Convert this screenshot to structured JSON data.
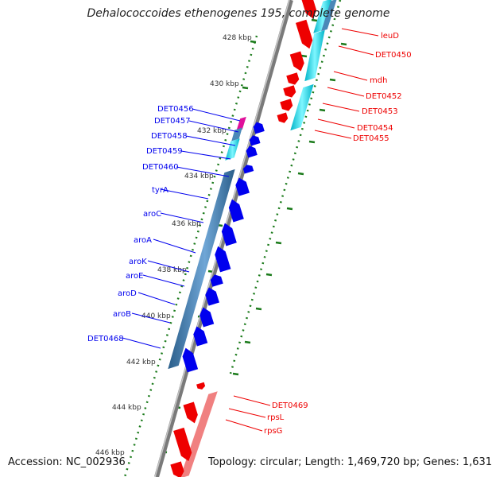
{
  "title": "Dehalococcoides ethenogenes 195, complete genome",
  "footer": {
    "accession": "Accession: NC_002936",
    "summary": "Topology: circular; Length: 1,469,720 bp; Genes: 1,631"
  },
  "colors": {
    "forward_gene": "#0000ee",
    "reverse_gene": "#ee0000",
    "reverse_gene_light": "#f08080",
    "cds_blue": "#4682b4",
    "cds_cyan": "#00e0e0",
    "cds_magenta": "#e0109a",
    "backbone": "#808080",
    "ticks": "#1a7a1a"
  },
  "ticks": [
    {
      "label": "428 kbp"
    },
    {
      "label": "430 kbp"
    },
    {
      "label": "432 kbp"
    },
    {
      "label": "434 kbp"
    },
    {
      "label": "436 kbp"
    },
    {
      "label": "438 kbp"
    },
    {
      "label": "440 kbp"
    },
    {
      "label": "442 kbp"
    },
    {
      "label": "444 kbp"
    },
    {
      "label": "446 kbp"
    }
  ],
  "genes_forward": [
    {
      "name": "DET0456"
    },
    {
      "name": "DET0457"
    },
    {
      "name": "DET0458"
    },
    {
      "name": "DET0459"
    },
    {
      "name": "DET0460"
    },
    {
      "name": "tyrA"
    },
    {
      "name": "aroC"
    },
    {
      "name": "aroA"
    },
    {
      "name": "aroK"
    },
    {
      "name": "aroE"
    },
    {
      "name": "aroD"
    },
    {
      "name": "aroB"
    },
    {
      "name": "DET0468"
    }
  ],
  "genes_reverse": [
    {
      "name": "leuD"
    },
    {
      "name": "DET0450"
    },
    {
      "name": "mdh"
    },
    {
      "name": "DET0452"
    },
    {
      "name": "DET0453"
    },
    {
      "name": "DET0454"
    },
    {
      "name": "DET0455"
    },
    {
      "name": "DET0469"
    },
    {
      "name": "rpsL"
    },
    {
      "name": "rpsG"
    }
  ]
}
